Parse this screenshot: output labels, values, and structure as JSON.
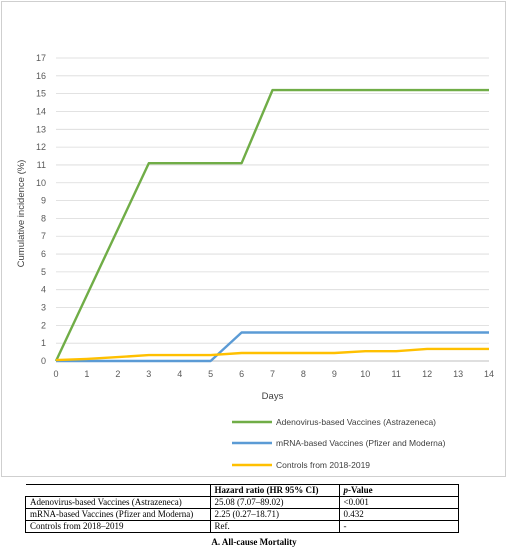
{
  "chart_data": {
    "type": "line",
    "xlabel": "Days",
    "ylabel": "Cumulative incidence (%)",
    "x": [
      0,
      1,
      2,
      3,
      4,
      5,
      6,
      7,
      8,
      9,
      10,
      11,
      12,
      13,
      14
    ],
    "xlim": [
      0,
      14
    ],
    "ylim": [
      0,
      17
    ],
    "yticks": [
      0,
      1,
      2,
      3,
      4,
      5,
      6,
      7,
      8,
      9,
      10,
      11,
      12,
      13,
      14,
      15,
      16,
      17
    ],
    "grid": "horizontal",
    "legend_placement": "bottom",
    "series": [
      {
        "name": "Adenovirus-based Vaccines (Astrazeneca)",
        "color": "#70ad47",
        "values": [
          0,
          3.7,
          7.4,
          11.1,
          11.1,
          11.1,
          11.1,
          15.2,
          15.2,
          15.2,
          15.2,
          15.2,
          15.2,
          15.2,
          15.2
        ]
      },
      {
        "name": "mRNA-based Vaccines  (Pfizer and Moderna)",
        "color": "#5b9bd5",
        "values": [
          0,
          0,
          0,
          0,
          0,
          0,
          1.6,
          1.6,
          1.6,
          1.6,
          1.6,
          1.6,
          1.6,
          1.6,
          1.6
        ]
      },
      {
        "name": "Controls from 2018-2019",
        "color": "#ffc000",
        "values": [
          0.05,
          0.12,
          0.22,
          0.33,
          0.33,
          0.33,
          0.45,
          0.45,
          0.45,
          0.45,
          0.55,
          0.55,
          0.68,
          0.68,
          0.68
        ]
      }
    ]
  },
  "table": {
    "header": {
      "blank": "",
      "hr": "Hazard ratio (HR 95% CI)",
      "p_italic": "p",
      "p_rest": "-Value"
    },
    "rows": [
      {
        "group": "Adenovirus-based Vaccines (Astrazeneca)",
        "hr": "25.08 (7.07–89.02)",
        "p": "<0.001"
      },
      {
        "group": "mRNA-based Vaccines (Pfizer and Moderna)",
        "hr": "2.25 (0.27–18.71)",
        "p": "0.432"
      },
      {
        "group": "Controls from 2018–2019",
        "hr": "Ref.",
        "p": "-"
      }
    ]
  },
  "caption": "A. All-cause Mortality"
}
